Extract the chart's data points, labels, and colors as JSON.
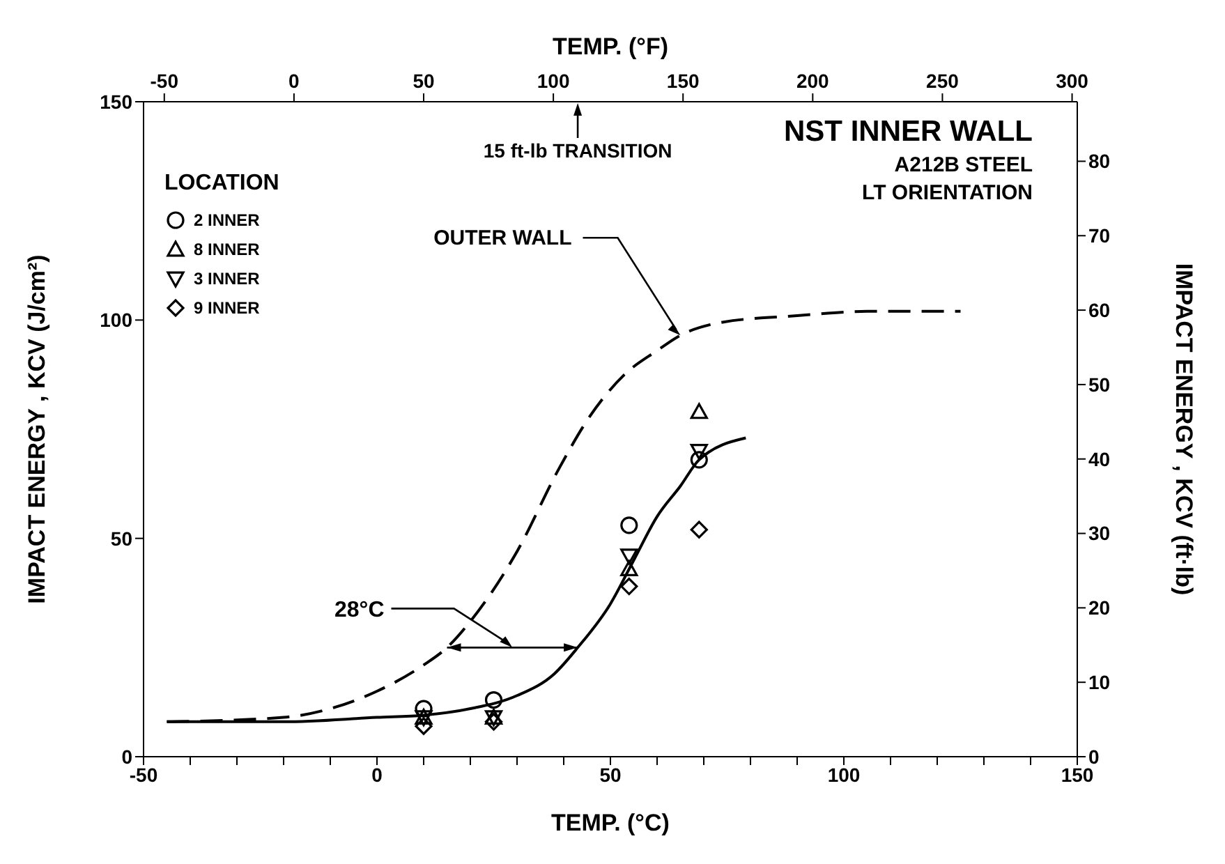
{
  "chart_data": {
    "type": "scatter",
    "title": "NST INNER WALL",
    "xlabel": "TEMP. (°C)",
    "x2label": "TEMP. (°F)",
    "ylabel": "IMPACT ENERGY , KCV (J/cm²)",
    "y2label": "IMPACT ENERGY , KCV (ft·lb)",
    "legend_title": "LOCATION",
    "legend": "top left",
    "grid": false,
    "xlim": [
      -50,
      150
    ],
    "xticks": [
      -50,
      {
        "value": -40,
        "label": null
      },
      {
        "value": -30,
        "label": null
      },
      {
        "value": -20,
        "label": null
      },
      {
        "value": -10,
        "label": null
      },
      0,
      {
        "value": 10,
        "label": null
      },
      {
        "value": 20,
        "label": null
      },
      {
        "value": 30,
        "label": null
      },
      {
        "value": 40,
        "label": null
      },
      50,
      {
        "value": 60,
        "label": null
      },
      {
        "value": 70,
        "label": null
      },
      {
        "value": 80,
        "label": null
      },
      {
        "value": 90,
        "label": null
      },
      100,
      {
        "value": 110,
        "label": null
      },
      {
        "value": 120,
        "label": null
      },
      {
        "value": 130,
        "label": null
      },
      {
        "value": 140,
        "label": null
      },
      150
    ],
    "x2lim": [
      -58,
      302
    ],
    "x2ticks": [
      -50,
      0,
      50,
      100,
      150,
      200,
      250,
      300
    ],
    "ylim": [
      0,
      150
    ],
    "yticks": [
      0,
      50,
      100,
      150
    ],
    "y2lim": [
      0,
      88
    ],
    "y2ticks": [
      0,
      10,
      20,
      30,
      40,
      50,
      60,
      70,
      80
    ],
    "annotations": [
      "15 ft-lb TRANSITION",
      "28°C",
      "A212B STEEL",
      "LT ORIENTATION"
    ],
    "series": [
      {
        "type": "line",
        "name": "OUTER WALL",
        "color": "#000000",
        "line_style": "dashed",
        "marker": "none",
        "x": [
          -45,
          -20,
          -10,
          0,
          10,
          15,
          20,
          30,
          39,
          45,
          53,
          60,
          65,
          74,
          90,
          105,
          125
        ],
        "values": [
          8,
          9,
          11,
          15,
          21,
          25,
          31,
          47,
          66,
          77,
          87.5,
          93,
          96.5,
          99.5,
          101,
          102,
          102
        ]
      },
      {
        "type": "line",
        "color": "#000000",
        "line_style": "solid",
        "marker": "none",
        "x": [
          -45,
          -20,
          0,
          10,
          20,
          30,
          38,
          43,
          50,
          55,
          60,
          65,
          69,
          79
        ],
        "values": [
          8,
          8,
          9,
          9.5,
          11,
          14,
          19,
          25,
          35,
          45,
          55,
          62,
          68,
          73
        ]
      },
      {
        "name": "2 INNER",
        "color": "#000000",
        "marker": "circle",
        "x": [
          10,
          25,
          54,
          69
        ],
        "values": [
          11,
          13,
          53,
          68
        ]
      },
      {
        "name": "8 INNER",
        "color": "#000000",
        "marker": "triangle",
        "x": [
          10,
          25,
          54,
          69
        ],
        "values": [
          9,
          9,
          43,
          79
        ]
      },
      {
        "name": "3 INNER",
        "color": "#000000",
        "marker": "triangle-down",
        "x": [
          10,
          25,
          54,
          69
        ],
        "values": [
          9,
          9,
          46,
          70
        ]
      },
      {
        "name": "9 INNER",
        "color": "#000000",
        "marker": "diamond",
        "x": [
          10,
          25,
          54,
          69
        ],
        "values": [
          7,
          8,
          39,
          52
        ]
      }
    ]
  }
}
